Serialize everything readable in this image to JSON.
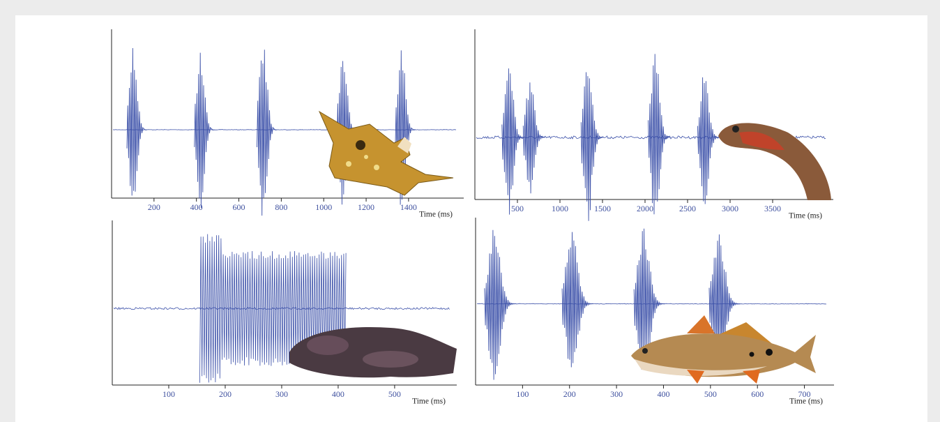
{
  "chart_data": [
    {
      "type": "pulses",
      "x_label": "Time (ms)",
      "xlim": [
        0,
        1660
      ],
      "xticks": [
        200,
        400,
        600,
        800,
        1000,
        1200,
        1400
      ],
      "ylim": [
        -0.81,
        1.19
      ],
      "color": "#3a4fa8",
      "x": [
        102,
        420,
        715,
        1092,
        1367
      ],
      "values": [
        1.0,
        0.98,
        1.1,
        0.98,
        0.95
      ]
    },
    {
      "type": "pulses",
      "x_label": "Time (ms)",
      "xlim": [
        0,
        4213
      ],
      "xticks": [
        500,
        1000,
        1500,
        2000,
        2500,
        3000,
        3500
      ],
      "ylim": [
        -0.73,
        1.27
      ],
      "color": "#3a4fa8",
      "x": [
        400,
        650,
        1330,
        2120,
        2700
      ],
      "values": [
        0.92,
        0.7,
        1.0,
        1.0,
        0.8
      ]
    },
    {
      "type": "burst",
      "x_label": "Time (ms)",
      "xlim": [
        0,
        610
      ],
      "xticks": [
        100,
        200,
        300,
        400,
        500
      ],
      "ylim": [
        -0.93,
        1.07
      ],
      "color": "#3a4fa8",
      "xrange": [
        155,
        415
      ],
      "amplitude": 0.93
    },
    {
      "type": "pulses",
      "x_label": "Time (ms)",
      "xlim": [
        0,
        763
      ],
      "xticks": [
        100,
        200,
        300,
        400,
        500,
        600,
        700
      ],
      "ylim": [
        -0.97,
        1.03
      ],
      "color": "#3a4fa8",
      "x": [
        40,
        205,
        358,
        518
      ],
      "values": [
        0.92,
        0.9,
        0.92,
        0.88
      ]
    }
  ]
}
